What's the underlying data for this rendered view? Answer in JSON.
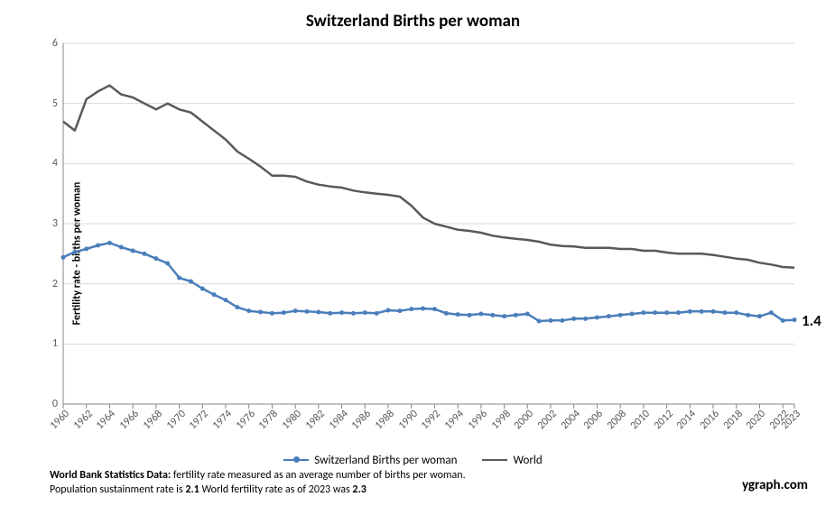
{
  "chart": {
    "type": "line",
    "title": "Switzerland Births per woman",
    "title_fontsize": 19,
    "ylabel": "Fertility rate - births per woman",
    "ylabel_fontsize": 12,
    "background_color": "#ffffff",
    "plot_border_color": "#868686",
    "grid_color": "#d9d9d9",
    "tick_font_color": "#595959",
    "tick_fontsize": 12,
    "ylim": [
      0,
      6
    ],
    "ytick_step": 1,
    "xlim": [
      1960,
      2023
    ],
    "xtick_step": 2,
    "xtick_rotation": -45,
    "xtick_values": [
      1960,
      1962,
      1964,
      1966,
      1968,
      1970,
      1972,
      1974,
      1976,
      1978,
      1980,
      1982,
      1984,
      1986,
      1988,
      1990,
      1992,
      1994,
      1996,
      1998,
      2000,
      2002,
      2004,
      2006,
      2008,
      2010,
      2012,
      2014,
      2016,
      2018,
      2020,
      2022,
      2023
    ],
    "series": [
      {
        "name": "Switzerland Births per woman",
        "color": "#4a7ebb",
        "line_width": 2.5,
        "marker": "circle",
        "marker_size": 5,
        "x": [
          1960,
          1961,
          1962,
          1963,
          1964,
          1965,
          1966,
          1967,
          1968,
          1969,
          1970,
          1971,
          1972,
          1973,
          1974,
          1975,
          1976,
          1977,
          1978,
          1979,
          1980,
          1981,
          1982,
          1983,
          1984,
          1985,
          1986,
          1987,
          1988,
          1989,
          1990,
          1991,
          1992,
          1993,
          1994,
          1995,
          1996,
          1997,
          1998,
          1999,
          2000,
          2001,
          2002,
          2003,
          2004,
          2005,
          2006,
          2007,
          2008,
          2009,
          2010,
          2011,
          2012,
          2013,
          2014,
          2015,
          2016,
          2017,
          2018,
          2019,
          2020,
          2021,
          2022,
          2023
        ],
        "y": [
          2.44,
          2.53,
          2.58,
          2.64,
          2.68,
          2.61,
          2.55,
          2.5,
          2.42,
          2.34,
          2.1,
          2.04,
          1.92,
          1.82,
          1.73,
          1.61,
          1.55,
          1.53,
          1.51,
          1.52,
          1.55,
          1.54,
          1.53,
          1.51,
          1.52,
          1.51,
          1.52,
          1.51,
          1.56,
          1.55,
          1.58,
          1.59,
          1.58,
          1.51,
          1.49,
          1.48,
          1.5,
          1.48,
          1.46,
          1.48,
          1.5,
          1.38,
          1.39,
          1.39,
          1.42,
          1.42,
          1.44,
          1.46,
          1.48,
          1.5,
          1.52,
          1.52,
          1.52,
          1.52,
          1.54,
          1.54,
          1.54,
          1.52,
          1.52,
          1.48,
          1.46,
          1.52,
          1.39,
          1.4
        ],
        "end_label": "1.4",
        "end_label_color": "#000000",
        "end_label_fontsize": 17
      },
      {
        "name": "World",
        "color": "#595959",
        "line_width": 2.5,
        "marker": "none",
        "x": [
          1960,
          1961,
          1962,
          1963,
          1964,
          1965,
          1966,
          1967,
          1968,
          1969,
          1970,
          1971,
          1972,
          1973,
          1974,
          1975,
          1976,
          1977,
          1978,
          1979,
          1980,
          1981,
          1982,
          1983,
          1984,
          1985,
          1986,
          1987,
          1988,
          1989,
          1990,
          1991,
          1992,
          1993,
          1994,
          1995,
          1996,
          1997,
          1998,
          1999,
          2000,
          2001,
          2002,
          2003,
          2004,
          2005,
          2006,
          2007,
          2008,
          2009,
          2010,
          2011,
          2012,
          2013,
          2014,
          2015,
          2016,
          2017,
          2018,
          2019,
          2020,
          2021,
          2022,
          2023
        ],
        "y": [
          4.7,
          4.55,
          5.07,
          5.2,
          5.3,
          5.15,
          5.1,
          5.0,
          4.9,
          5.0,
          4.9,
          4.85,
          4.7,
          4.55,
          4.4,
          4.2,
          4.08,
          3.95,
          3.8,
          3.8,
          3.78,
          3.7,
          3.65,
          3.62,
          3.6,
          3.55,
          3.52,
          3.5,
          3.48,
          3.45,
          3.3,
          3.1,
          3.0,
          2.95,
          2.9,
          2.88,
          2.85,
          2.8,
          2.77,
          2.75,
          2.73,
          2.7,
          2.65,
          2.63,
          2.62,
          2.6,
          2.6,
          2.6,
          2.58,
          2.58,
          2.55,
          2.55,
          2.52,
          2.5,
          2.5,
          2.5,
          2.48,
          2.45,
          2.42,
          2.4,
          2.35,
          2.32,
          2.28,
          2.27
        ]
      }
    ],
    "legend": {
      "position": "bottom",
      "fontsize": 13
    },
    "footnote": {
      "line1_prefix": "World Bank Statistics Data:",
      "line1_rest": " fertility rate measured as an average number of births per woman.",
      "line2_a": "Population sustainment rate is ",
      "line2_a_bold": "2.1",
      "line2_b": "    World fertility rate as of 2023 was ",
      "line2_b_bold": "2.3",
      "fontsize": 12
    },
    "brand": "ygraph.com"
  }
}
